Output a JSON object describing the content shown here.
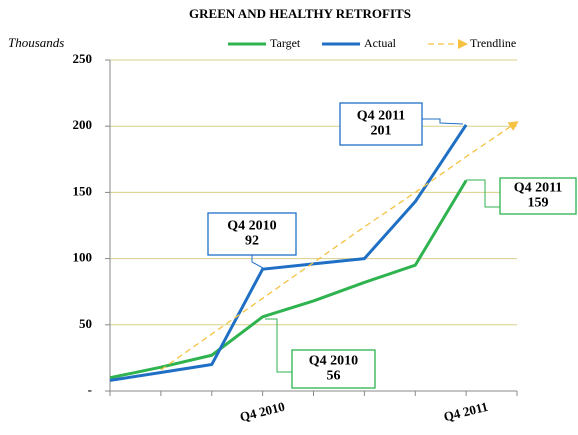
{
  "chart_data": {
    "type": "line",
    "title": "GREEN AND HEALTHY RETROFITS",
    "y_label": "Thousands",
    "categories": [
      null,
      null,
      null,
      "Q4 2010",
      null,
      null,
      null,
      "Q4 2011",
      null
    ],
    "series": [
      {
        "name": "Target",
        "color": "#2eb34f",
        "values": [
          10,
          18,
          27,
          56,
          68,
          82,
          95,
          159,
          null
        ]
      },
      {
        "name": "Actual",
        "color": "#1f6fc5",
        "values": [
          8,
          14,
          20,
          92,
          96,
          100,
          143,
          201,
          null
        ]
      },
      {
        "name": "Trendline",
        "color": "#f5c242",
        "dashed": true,
        "values": [
          null,
          16,
          43,
          70,
          97,
          124,
          150,
          177,
          203
        ]
      }
    ],
    "ylim": [
      0,
      250
    ],
    "yticks": [
      {
        "value": 0,
        "label": "-"
      },
      50,
      100,
      150,
      200,
      250
    ],
    "grid": true,
    "legend": "top",
    "annotations": [
      {
        "lines": [
          "Q4 2010",
          "92"
        ],
        "color": "#1f6fc5"
      },
      {
        "lines": [
          "Q4 2011",
          "201"
        ],
        "color": "#1f6fc5"
      },
      {
        "lines": [
          "Q4 2011",
          "159"
        ],
        "color": "#2eb34f"
      },
      {
        "lines": [
          "Q4 2010",
          "56"
        ],
        "color": "#2eb34f"
      }
    ]
  }
}
